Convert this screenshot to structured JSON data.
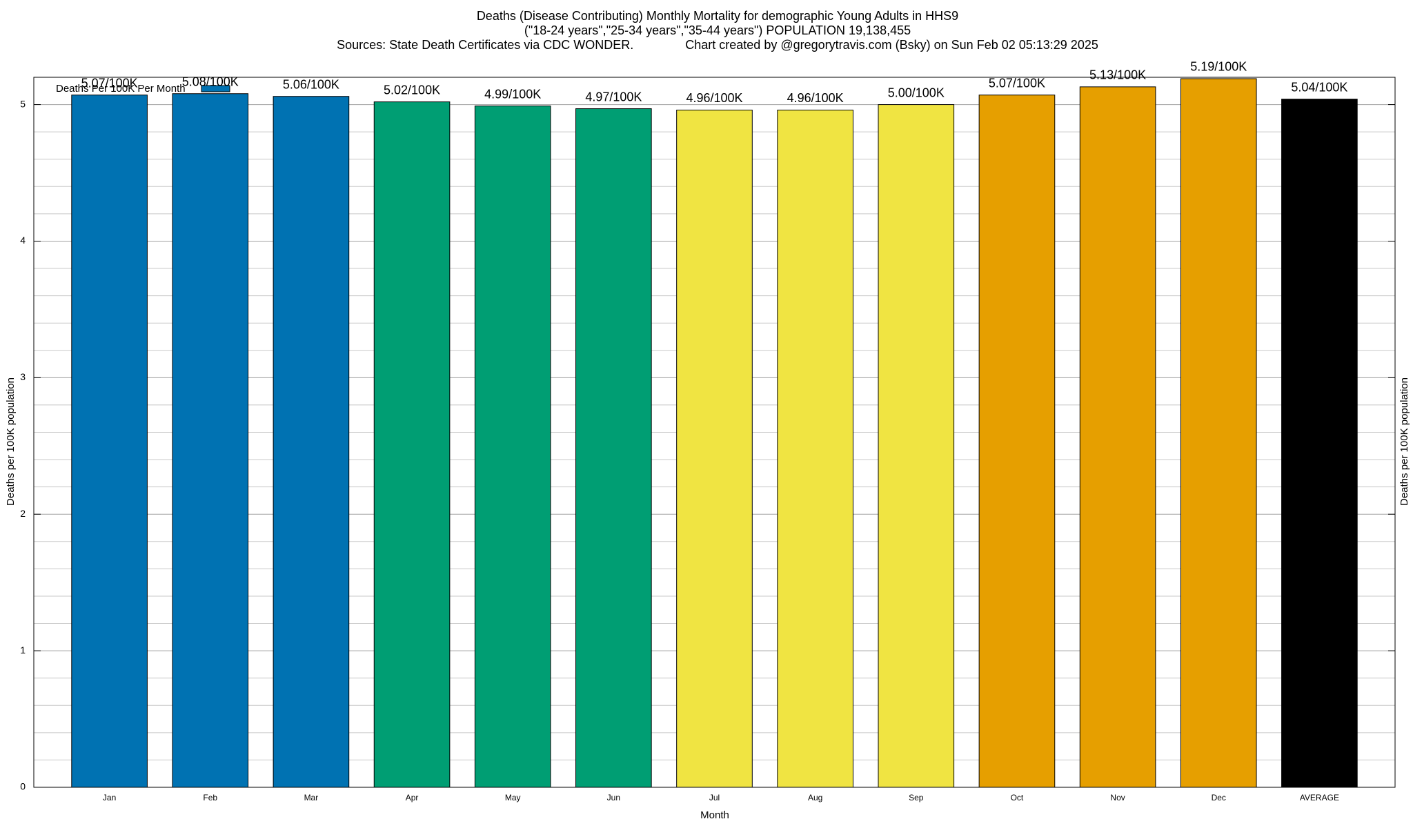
{
  "chart_data": {
    "type": "bar",
    "title": "Deaths (Disease Contributing) Monthly Mortality for demographic Young Adults in HHS9",
    "subtitle": "(\"18-24 years\",\"25-34 years\",\"35-44 years\") POPULATION 19,138,455",
    "source": "Sources: State Death Certificates via CDC WONDER.               Chart created by @gregorytravis.com (Bsky) on Sun Feb 02 05:13:29 2025",
    "xlabel": "Month",
    "ylabel": "Deaths per 100K population",
    "categories": [
      "Jan",
      "Feb",
      "Mar",
      "Apr",
      "May",
      "Jun",
      "Jul",
      "Aug",
      "Sep",
      "Oct",
      "Nov",
      "Dec",
      "AVERAGE"
    ],
    "series": [
      {
        "name": "Deaths Per 100K Per Month",
        "color": "#0072b2",
        "values": [
          5.07,
          5.08,
          5.06,
          5.02,
          4.99,
          4.97,
          4.96,
          4.96,
          5.0,
          5.07,
          5.13,
          5.19,
          5.04
        ],
        "value_labels": [
          "5.07/100K",
          "5.08/100K",
          "5.06/100K",
          "5.02/100K",
          "4.99/100K",
          "4.97/100K",
          "4.96/100K",
          "4.96/100K",
          "5.00/100K",
          "5.07/100K",
          "5.13/100K",
          "5.19/100K",
          "5.04/100K"
        ],
        "colors": [
          "#0072b2",
          "#0072b2",
          "#0072b2",
          "#009e73",
          "#009e73",
          "#009e73",
          "#f0e442",
          "#f0e442",
          "#f0e442",
          "#e69f00",
          "#e69f00",
          "#e69f00",
          "#000000"
        ]
      }
    ],
    "ylim": [
      0,
      5.2
    ],
    "yticks": [
      0,
      1,
      2,
      3,
      4,
      5
    ],
    "minor_yticks": [
      0.2,
      0.4,
      0.6,
      0.8,
      1.2,
      1.4,
      1.6,
      1.8,
      2.2,
      2.4,
      2.6,
      2.8,
      3.2,
      3.4,
      3.6,
      3.8,
      4.2,
      4.4,
      4.6,
      4.8,
      5.2
    ],
    "grid": true,
    "legend": "top-left"
  }
}
